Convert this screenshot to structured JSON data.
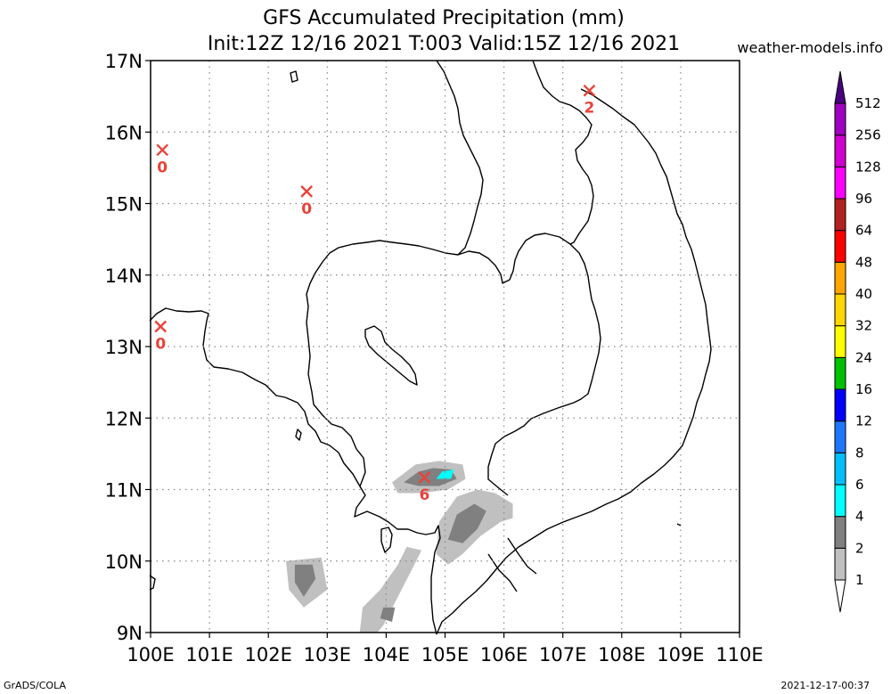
{
  "title": {
    "line1": "GFS Accumulated Precipitation (mm)",
    "line2": "Init:12Z 12/16 2021 T:003 Valid:15Z 12/16 2021"
  },
  "website": "weather-models.info",
  "footer": {
    "left": "GrADS/COLA",
    "right": "2021-12-17-00:37"
  },
  "map": {
    "lon_range": [
      100,
      110
    ],
    "lat_range": [
      9,
      17
    ],
    "lon_labels": [
      "100E",
      "101E",
      "102E",
      "103E",
      "104E",
      "105E",
      "106E",
      "107E",
      "108E",
      "109E",
      "110E"
    ],
    "lat_labels": [
      "9N",
      "10N",
      "11N",
      "12N",
      "13N",
      "14N",
      "15N",
      "16N",
      "17N"
    ],
    "grid": "dotted"
  },
  "stations": [
    {
      "lon": 100.2,
      "lat": 15.75,
      "value": "0"
    },
    {
      "lon": 102.65,
      "lat": 15.17,
      "value": "0"
    },
    {
      "lon": 100.17,
      "lat": 13.28,
      "value": "0"
    },
    {
      "lon": 107.45,
      "lat": 16.58,
      "value": "2"
    },
    {
      "lon": 104.65,
      "lat": 11.17,
      "value": "6"
    }
  ],
  "colorbar": {
    "levels": [
      "1",
      "2",
      "4",
      "6",
      "8",
      "12",
      "16",
      "24",
      "32",
      "40",
      "48",
      "64",
      "96",
      "128",
      "256",
      "512"
    ],
    "colors": [
      "#c0c0c0",
      "#808080",
      "#00ffff",
      "#00bfff",
      "#1e78ff",
      "#0000ff",
      "#00c000",
      "#ffff00",
      "#ffd700",
      "#ffa500",
      "#ff0000",
      "#b22222",
      "#ff00ff",
      "#d000d0",
      "#a000c0",
      "#800080",
      "#4b0082"
    ],
    "bottom_color": "#ffffff"
  },
  "precip_areas": [
    {
      "level": 1,
      "color": "#c0c0c0",
      "points": [
        [
          102.3,
          10.0
        ],
        [
          102.9,
          10.05
        ],
        [
          103.0,
          9.6
        ],
        [
          102.6,
          9.35
        ],
        [
          102.35,
          9.6
        ]
      ]
    },
    {
      "level": 2,
      "color": "#808080",
      "points": [
        [
          102.45,
          9.95
        ],
        [
          102.75,
          9.95
        ],
        [
          102.8,
          9.75
        ],
        [
          102.6,
          9.5
        ],
        [
          102.45,
          9.7
        ]
      ]
    },
    {
      "level": 1,
      "color": "#c0c0c0",
      "points": [
        [
          103.55,
          9.0
        ],
        [
          103.6,
          9.35
        ],
        [
          103.9,
          9.6
        ],
        [
          104.2,
          9.95
        ],
        [
          104.35,
          10.2
        ],
        [
          104.6,
          10.15
        ],
        [
          104.45,
          9.9
        ],
        [
          104.2,
          9.5
        ],
        [
          103.95,
          9.1
        ],
        [
          103.85,
          9.0
        ]
      ]
    },
    {
      "level": 2,
      "color": "#808080",
      "points": [
        [
          103.9,
          9.2
        ],
        [
          103.95,
          9.35
        ],
        [
          104.15,
          9.35
        ],
        [
          104.1,
          9.15
        ]
      ]
    },
    {
      "level": 1,
      "color": "#c0c0c0",
      "points": [
        [
          104.85,
          10.1
        ],
        [
          104.9,
          10.55
        ],
        [
          105.2,
          10.9
        ],
        [
          105.55,
          11.0
        ],
        [
          105.85,
          10.95
        ],
        [
          106.15,
          10.8
        ],
        [
          106.15,
          10.6
        ],
        [
          105.95,
          10.55
        ],
        [
          105.6,
          10.35
        ],
        [
          105.3,
          10.1
        ],
        [
          105.05,
          9.95
        ]
      ]
    },
    {
      "level": 2,
      "color": "#808080",
      "points": [
        [
          105.05,
          10.3
        ],
        [
          105.2,
          10.65
        ],
        [
          105.5,
          10.8
        ],
        [
          105.7,
          10.7
        ],
        [
          105.55,
          10.45
        ],
        [
          105.3,
          10.25
        ]
      ]
    },
    {
      "level": 1,
      "color": "#c0c0c0",
      "points": [
        [
          104.1,
          11.1
        ],
        [
          104.5,
          11.35
        ],
        [
          104.9,
          11.4
        ],
        [
          105.3,
          11.35
        ],
        [
          105.35,
          11.15
        ],
        [
          105.05,
          11.0
        ],
        [
          104.6,
          10.95
        ],
        [
          104.2,
          10.95
        ]
      ]
    },
    {
      "level": 2,
      "color": "#808080",
      "points": [
        [
          104.3,
          11.1
        ],
        [
          104.55,
          11.25
        ],
        [
          104.8,
          11.3
        ],
        [
          105.1,
          11.28
        ],
        [
          105.2,
          11.15
        ],
        [
          104.9,
          11.05
        ],
        [
          104.55,
          11.05
        ]
      ]
    },
    {
      "level": 4,
      "color": "#00ffff",
      "points": [
        [
          104.85,
          11.15
        ],
        [
          104.95,
          11.25
        ],
        [
          105.15,
          11.28
        ],
        [
          105.1,
          11.15
        ]
      ]
    }
  ]
}
